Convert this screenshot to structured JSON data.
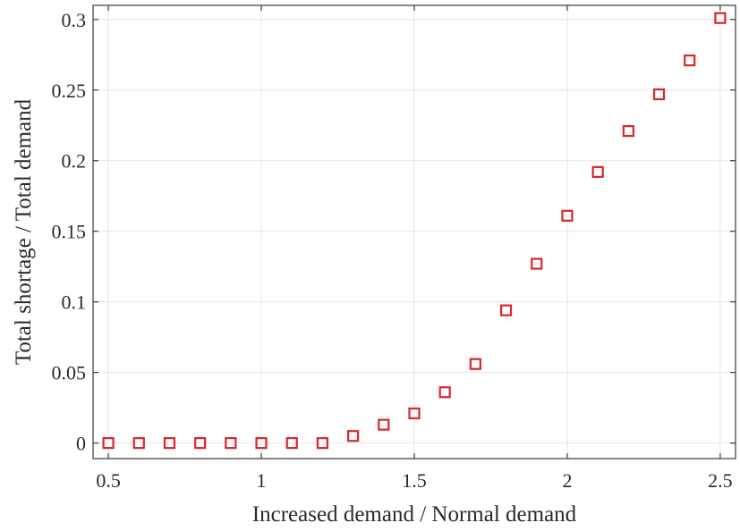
{
  "chart_data": {
    "type": "scatter",
    "title": "",
    "xlabel": "Increased demand / Normal demand",
    "ylabel": "Total shortage / Total demand",
    "xlim": [
      0.45,
      2.55
    ],
    "ylim": [
      -0.011,
      0.31
    ],
    "xticks": [
      0.5,
      1,
      1.5,
      2,
      2.5
    ],
    "xtick_labels": [
      "0.5",
      "1",
      "1.5",
      "2",
      "2.5"
    ],
    "yticks": [
      0,
      0.05,
      0.1,
      0.15,
      0.2,
      0.25,
      0.3
    ],
    "ytick_labels": [
      "0",
      "0.05",
      "0.1",
      "0.15",
      "0.2",
      "0.25",
      "0.3"
    ],
    "grid": true,
    "marker": "square",
    "marker_color": "#d9262b",
    "series": [
      {
        "x": [
          0.5,
          0.6,
          0.7,
          0.8,
          0.9,
          1.0,
          1.1,
          1.2,
          1.3,
          1.4,
          1.5,
          1.6,
          1.7,
          1.8,
          1.9,
          2.0,
          2.1,
          2.2,
          2.3,
          2.4,
          2.5
        ],
        "y": [
          0,
          0,
          0,
          0,
          0,
          0,
          0,
          0,
          0.005,
          0.013,
          0.021,
          0.036,
          0.056,
          0.094,
          0.127,
          0.161,
          0.192,
          0.221,
          0.247,
          0.271,
          0.301
        ]
      }
    ]
  }
}
